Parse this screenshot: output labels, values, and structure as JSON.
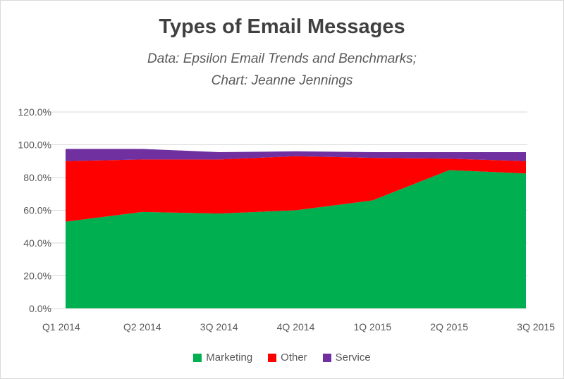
{
  "chart_data": {
    "type": "area",
    "stacked": true,
    "title": "Types of Email Messages",
    "subtitle_lines": [
      "Data: Epsilon Email Trends and Benchmarks;",
      "Chart:  Jeanne Jennings"
    ],
    "categories": [
      "Q1 2014",
      "Q2 2014",
      "3Q 2014",
      "4Q 2014",
      "1Q 2015",
      "2Q 2015",
      "3Q 2015"
    ],
    "series": [
      {
        "name": "Marketing",
        "color": "#00b050",
        "values": [
          53.0,
          59.0,
          58.0,
          60.0,
          66.0,
          84.5,
          82.5
        ]
      },
      {
        "name": "Other",
        "color": "#ff0000",
        "values": [
          37.0,
          32.0,
          33.0,
          33.0,
          26.0,
          7.0,
          7.5
        ]
      },
      {
        "name": "Service",
        "color": "#7030a0",
        "values": [
          7.5,
          6.5,
          4.5,
          3.0,
          3.5,
          4.0,
          5.5
        ]
      }
    ],
    "y_ticks": [
      "0.0%",
      "20.0%",
      "40.0%",
      "60.0%",
      "80.0%",
      "100.0%",
      "120.0%"
    ],
    "ylim": [
      0,
      120
    ],
    "xlabel": "",
    "ylabel": "",
    "grid": true,
    "legend_position": "bottom"
  }
}
